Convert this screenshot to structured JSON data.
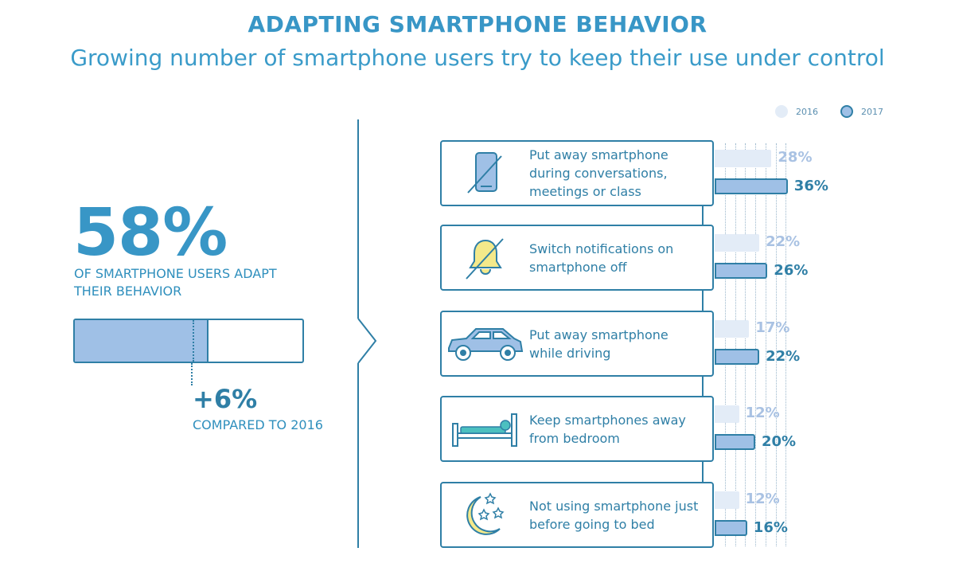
{
  "header": {
    "title": "ADAPTING SMARTPHONE BEHAVIOR",
    "subtitle": "Growing number of smartphone users try to keep their use under control"
  },
  "legend": {
    "y2016": "2016",
    "y2017": "2017"
  },
  "summary": {
    "headline_value": "58%",
    "headline_caption": "OF SMARTPHONE USERS ADAPT THEIR BEHAVIOR",
    "headline_fraction": 0.58,
    "previous_fraction": 0.52,
    "change_value": "+6%",
    "change_caption": "COMPARED TO 2016"
  },
  "colors": {
    "primary": "#2f7fa6",
    "title": "#3896c6",
    "bar_2016": "#e3ecf7",
    "bar_2017": "#9fc0e6",
    "label_2016": "#a9c2e3"
  },
  "chart_data": {
    "type": "bar",
    "orientation": "horizontal",
    "title": "ADAPTING SMARTPHONE BEHAVIOR",
    "subtitle": "Growing number of smartphone users try to keep their use under control",
    "unit": "%",
    "xlim": [
      0,
      40
    ],
    "legend_position": "top-right",
    "categories": [
      "Put away smartphone during conversations, meetings or class",
      "Switch notifications on smartphone off",
      "Put away smartphone while driving",
      "Keep smartphones away from bedroom",
      "Not using smartphone just before going to bed"
    ],
    "category_icons": [
      "phone-off-icon",
      "bell-off-icon",
      "car-icon",
      "bed-icon",
      "moon-stars-icon"
    ],
    "series": [
      {
        "name": "2016",
        "values": [
          28,
          22,
          17,
          12,
          12
        ],
        "labels": [
          "28%",
          "22%",
          "17%",
          "12%",
          "12%"
        ]
      },
      {
        "name": "2017",
        "values": [
          36,
          26,
          22,
          20,
          16
        ],
        "labels": [
          "36%",
          "26%",
          "22%",
          "20%",
          "16%"
        ]
      }
    ]
  }
}
